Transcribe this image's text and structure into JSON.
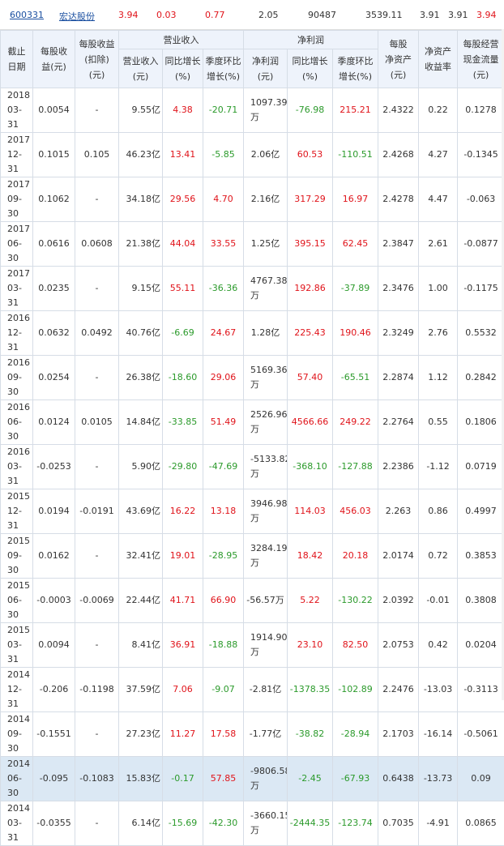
{
  "quote": {
    "code": "600331",
    "name": "宏达股份",
    "values": [
      "3.94",
      "0.03",
      "0.77",
      "2.05",
      "90487",
      "3539.11",
      "3.91",
      "3.91",
      "3.94"
    ]
  },
  "headers": {
    "date": [
      "截止",
      "日期"
    ],
    "eps": [
      "每股收",
      "益(元)"
    ],
    "eps_deducted": [
      "每股收益",
      "(扣除)",
      "(元)"
    ],
    "revenue_group": "营业收入",
    "revenue": [
      "营业收入",
      "(元)"
    ],
    "revenue_yoy": [
      "同比增长",
      "(%)"
    ],
    "revenue_qoq": [
      "季度环比",
      "增长(%)"
    ],
    "profit_group": "净利润",
    "profit": [
      "净利润",
      "(元)"
    ],
    "profit_yoy": [
      "同比增长",
      "(%)"
    ],
    "profit_qoq": [
      "季度环比",
      "增长(%)"
    ],
    "nav": [
      "每股",
      "净资产",
      "(元)"
    ],
    "roe": [
      "净资产",
      "收益率"
    ],
    "cashflow": [
      "每股经营",
      "现金流量",
      "(元)"
    ]
  },
  "rows": [
    {
      "date": [
        "2018",
        "03-31"
      ],
      "eps": "0.0054",
      "eps_d": "-",
      "rev": "9.55亿",
      "rev_yoy": "4.38",
      "rev_qoq": "-20.71",
      "profit": [
        "1097.39",
        "万"
      ],
      "p_yoy": "-76.98",
      "p_qoq": "215.21",
      "nav": "2.4322",
      "roe": "0.22",
      "cf": "0.1278"
    },
    {
      "date": [
        "2017",
        "12-31"
      ],
      "eps": "0.1015",
      "eps_d": "0.105",
      "rev": "46.23亿",
      "rev_yoy": "13.41",
      "rev_qoq": "-5.85",
      "profit": [
        "2.06亿"
      ],
      "p_yoy": "60.53",
      "p_qoq": "-110.51",
      "nav": "2.4268",
      "roe": "4.27",
      "cf": "-0.1345"
    },
    {
      "date": [
        "2017",
        "09-30"
      ],
      "eps": "0.1062",
      "eps_d": "-",
      "rev": "34.18亿",
      "rev_yoy": "29.56",
      "rev_qoq": "4.70",
      "profit": [
        "2.16亿"
      ],
      "p_yoy": "317.29",
      "p_qoq": "16.97",
      "nav": "2.4278",
      "roe": "4.47",
      "cf": "-0.063"
    },
    {
      "date": [
        "2017",
        "06-30"
      ],
      "eps": "0.0616",
      "eps_d": "0.0608",
      "rev": "21.38亿",
      "rev_yoy": "44.04",
      "rev_qoq": "33.55",
      "profit": [
        "1.25亿"
      ],
      "p_yoy": "395.15",
      "p_qoq": "62.45",
      "nav": "2.3847",
      "roe": "2.61",
      "cf": "-0.0877"
    },
    {
      "date": [
        "2017",
        "03-31"
      ],
      "eps": "0.0235",
      "eps_d": "-",
      "rev": "9.15亿",
      "rev_yoy": "55.11",
      "rev_qoq": "-36.36",
      "profit": [
        "4767.38",
        "万"
      ],
      "p_yoy": "192.86",
      "p_qoq": "-37.89",
      "nav": "2.3476",
      "roe": "1.00",
      "cf": "-0.1175"
    },
    {
      "date": [
        "2016",
        "12-31"
      ],
      "eps": "0.0632",
      "eps_d": "0.0492",
      "rev": "40.76亿",
      "rev_yoy": "-6.69",
      "rev_qoq": "24.67",
      "profit": [
        "1.28亿"
      ],
      "p_yoy": "225.43",
      "p_qoq": "190.46",
      "nav": "2.3249",
      "roe": "2.76",
      "cf": "0.5532"
    },
    {
      "date": [
        "2016",
        "09-30"
      ],
      "eps": "0.0254",
      "eps_d": "-",
      "rev": "26.38亿",
      "rev_yoy": "-18.60",
      "rev_qoq": "29.06",
      "profit": [
        "5169.36",
        "万"
      ],
      "p_yoy": "57.40",
      "p_qoq": "-65.51",
      "nav": "2.2874",
      "roe": "1.12",
      "cf": "0.2842"
    },
    {
      "date": [
        "2016",
        "06-30"
      ],
      "eps": "0.0124",
      "eps_d": "0.0105",
      "rev": "14.84亿",
      "rev_yoy": "-33.85",
      "rev_qoq": "51.49",
      "profit": [
        "2526.96",
        "万"
      ],
      "p_yoy": "4566.66",
      "p_qoq": "249.22",
      "nav": "2.2764",
      "roe": "0.55",
      "cf": "0.1806"
    },
    {
      "date": [
        "2016",
        "03-31"
      ],
      "eps": "-0.0253",
      "eps_d": "-",
      "rev": "5.90亿",
      "rev_yoy": "-29.80",
      "rev_qoq": "-47.69",
      "profit": [
        "-5133.82",
        "万"
      ],
      "p_yoy": "-368.10",
      "p_qoq": "-127.88",
      "nav": "2.2386",
      "roe": "-1.12",
      "cf": "0.0719"
    },
    {
      "date": [
        "2015",
        "12-31"
      ],
      "eps": "0.0194",
      "eps_d": "-0.0191",
      "rev": "43.69亿",
      "rev_yoy": "16.22",
      "rev_qoq": "13.18",
      "profit": [
        "3946.98",
        "万"
      ],
      "p_yoy": "114.03",
      "p_qoq": "456.03",
      "nav": "2.263",
      "roe": "0.86",
      "cf": "0.4997"
    },
    {
      "date": [
        "2015",
        "09-30"
      ],
      "eps": "0.0162",
      "eps_d": "-",
      "rev": "32.41亿",
      "rev_yoy": "19.01",
      "rev_qoq": "-28.95",
      "profit": [
        "3284.19",
        "万"
      ],
      "p_yoy": "18.42",
      "p_qoq": "20.18",
      "nav": "2.0174",
      "roe": "0.72",
      "cf": "0.3853"
    },
    {
      "date": [
        "2015",
        "06-30"
      ],
      "eps": "-0.0003",
      "eps_d": "-0.0069",
      "rev": "22.44亿",
      "rev_yoy": "41.71",
      "rev_qoq": "66.90",
      "profit": [
        "-56.57万"
      ],
      "p_yoy": "5.22",
      "p_qoq": "-130.22",
      "nav": "2.0392",
      "roe": "-0.01",
      "cf": "0.3808"
    },
    {
      "date": [
        "2015",
        "03-31"
      ],
      "eps": "0.0094",
      "eps_d": "-",
      "rev": "8.41亿",
      "rev_yoy": "36.91",
      "rev_qoq": "-18.88",
      "profit": [
        "1914.90",
        "万"
      ],
      "p_yoy": "23.10",
      "p_qoq": "82.50",
      "nav": "2.0753",
      "roe": "0.42",
      "cf": "0.0204"
    },
    {
      "date": [
        "2014",
        "12-31"
      ],
      "eps": "-0.206",
      "eps_d": "-0.1198",
      "rev": "37.59亿",
      "rev_yoy": "7.06",
      "rev_qoq": "-9.07",
      "profit": [
        "-2.81亿"
      ],
      "p_yoy": "-1378.35",
      "p_qoq": "-102.89",
      "nav": "2.2476",
      "roe": "-13.03",
      "cf": "-0.3113"
    },
    {
      "date": [
        "2014",
        "09-30"
      ],
      "eps": "-0.1551",
      "eps_d": "-",
      "rev": "27.23亿",
      "rev_yoy": "11.27",
      "rev_qoq": "17.58",
      "profit": [
        "-1.77亿"
      ],
      "p_yoy": "-38.82",
      "p_qoq": "-28.94",
      "nav": "2.1703",
      "roe": "-16.14",
      "cf": "-0.5061"
    },
    {
      "date": [
        "2014",
        "06-30"
      ],
      "eps": "-0.095",
      "eps_d": "-0.1083",
      "rev": "15.83亿",
      "rev_yoy": "-0.17",
      "rev_qoq": "57.85",
      "profit": [
        "-9806.58",
        "万"
      ],
      "p_yoy": "-2.45",
      "p_qoq": "-67.93",
      "nav": "0.6438",
      "roe": "-13.73",
      "cf": "0.09",
      "highlight": true
    },
    {
      "date": [
        "2014",
        "03-31"
      ],
      "eps": "-0.0355",
      "eps_d": "-",
      "rev": "6.14亿",
      "rev_yoy": "-15.69",
      "rev_qoq": "-42.30",
      "profit": [
        "-3660.15",
        "万"
      ],
      "p_yoy": "-2444.35",
      "p_qoq": "-123.74",
      "nav": "0.7035",
      "roe": "-4.91",
      "cf": "0.0865"
    }
  ],
  "colors": {
    "up": "#e0131a",
    "down": "#2b9a2b",
    "link": "#1a4fa0",
    "header_bg": "#eef3fb",
    "highlight_bg": "#dbe8f4"
  }
}
